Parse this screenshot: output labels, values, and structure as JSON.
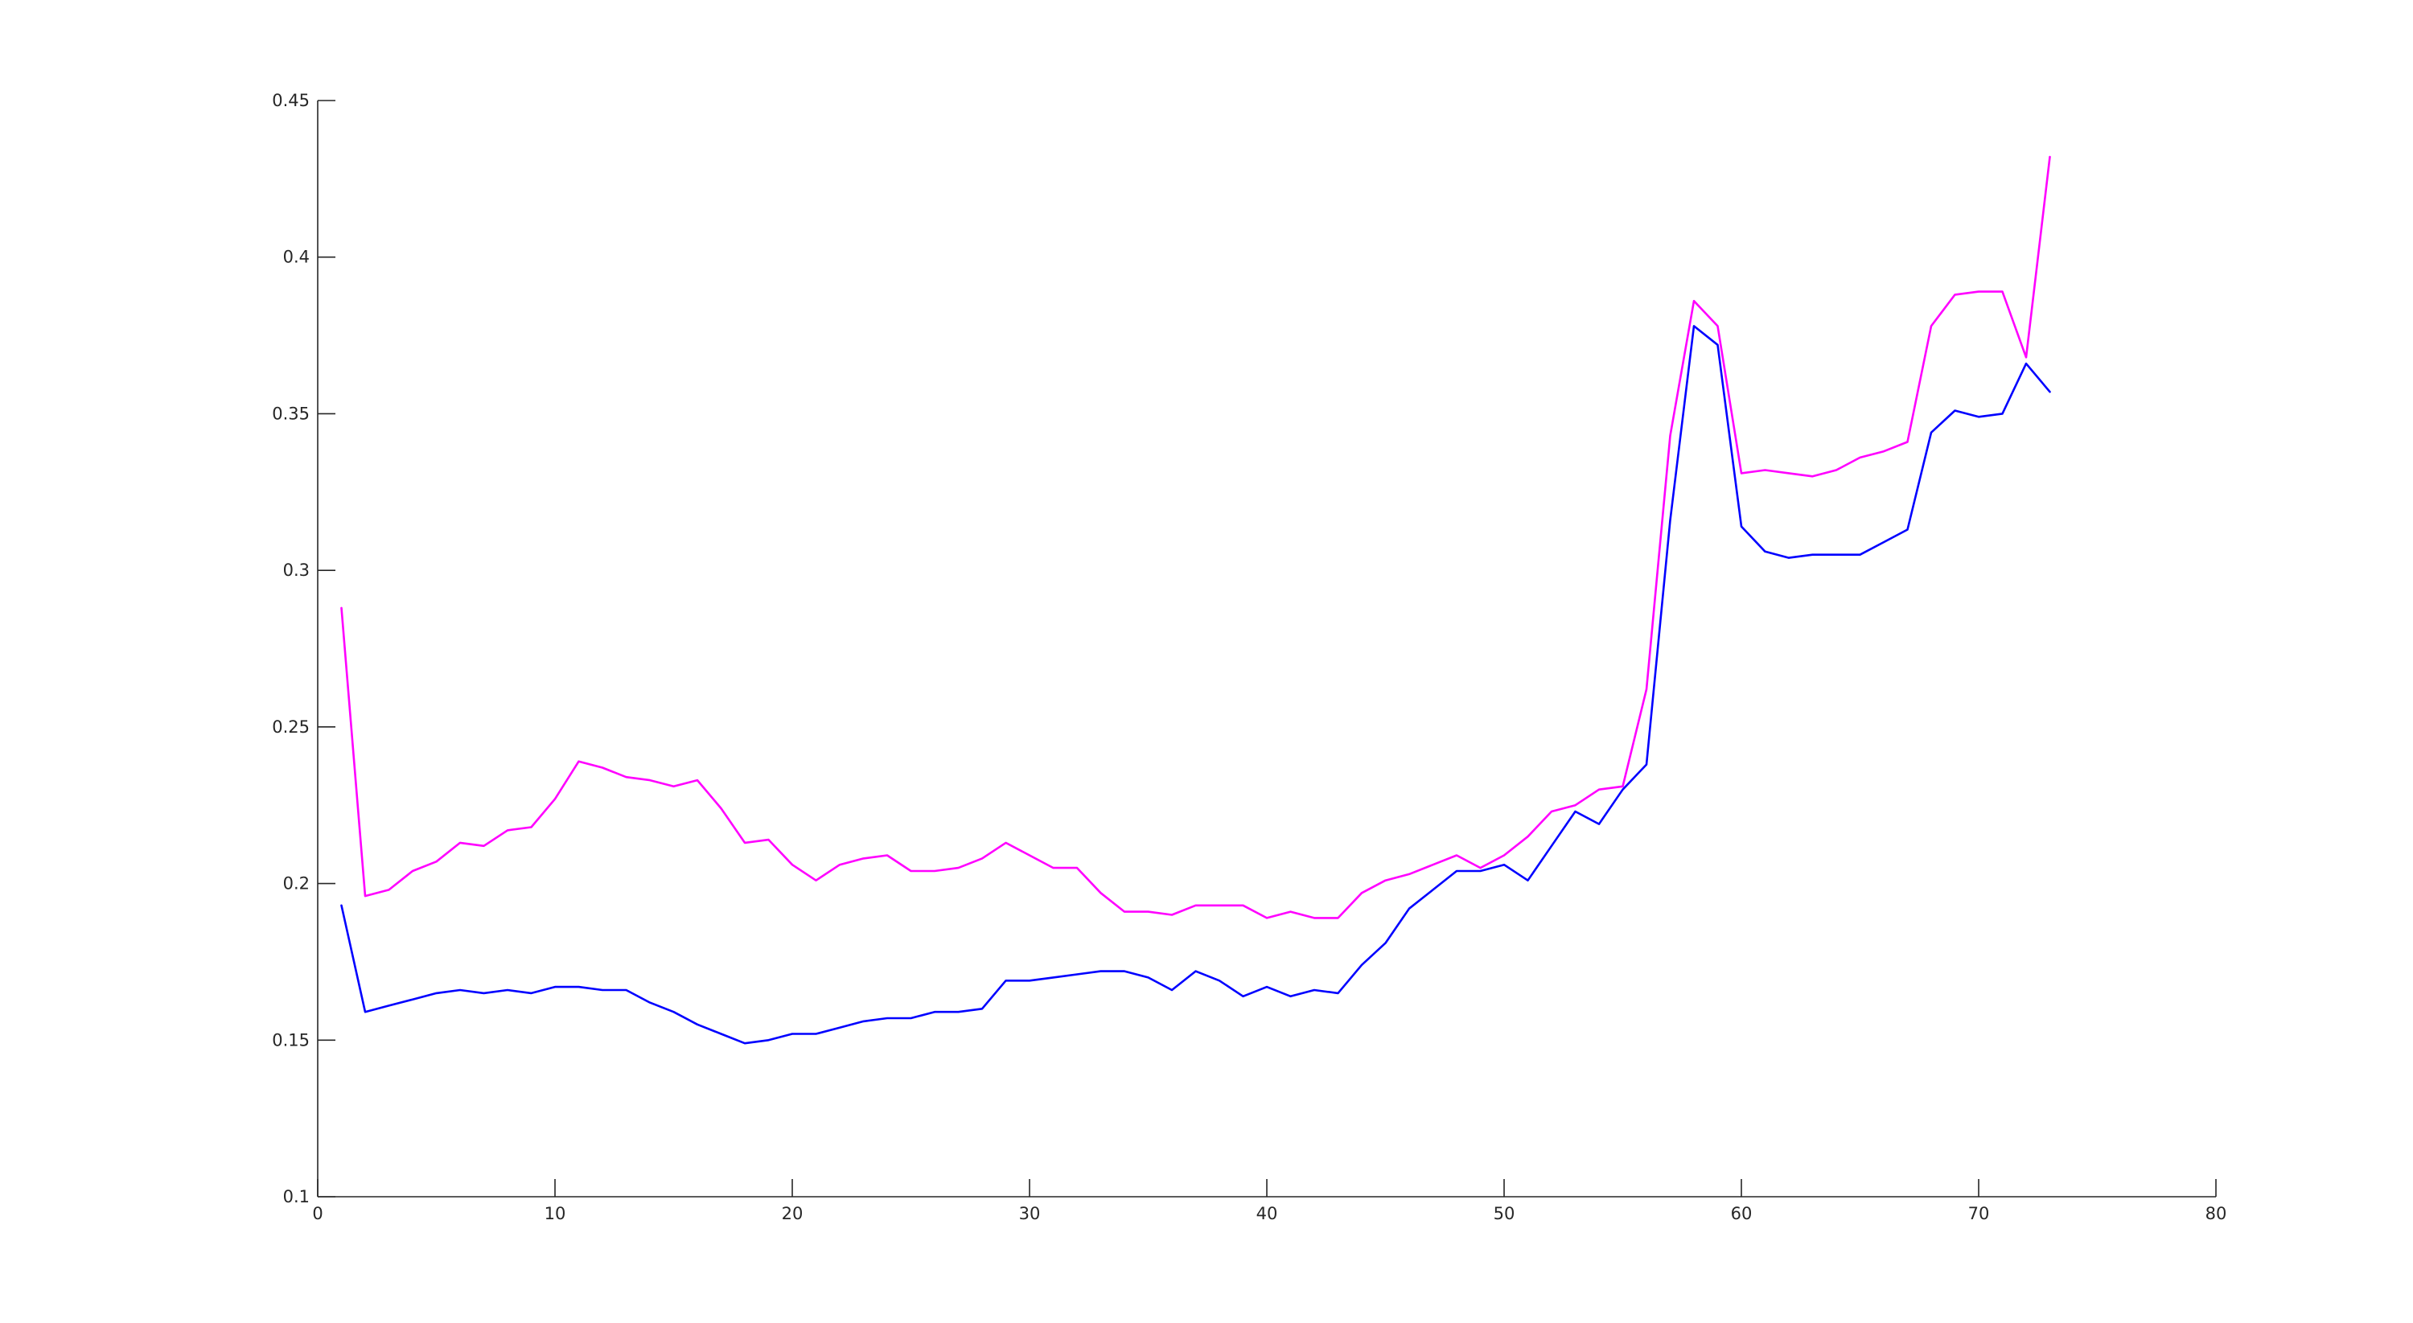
{
  "chart_data": {
    "type": "line",
    "title": "",
    "xlabel": "",
    "ylabel": "",
    "xlim": [
      0,
      80
    ],
    "ylim": [
      0.1,
      0.45
    ],
    "xticks": [
      0,
      10,
      20,
      30,
      40,
      50,
      60,
      70,
      80
    ],
    "yticks": [
      0.1,
      0.15,
      0.2,
      0.25,
      0.3,
      0.35,
      0.4,
      0.45
    ],
    "xtick_labels": [
      "0",
      "10",
      "20",
      "30",
      "40",
      "50",
      "60",
      "70",
      "80"
    ],
    "ytick_labels": [
      "0.1",
      "0.15",
      "0.2",
      "0.25",
      "0.3",
      "0.35",
      "0.4",
      "0.45"
    ],
    "grid": false,
    "x": [
      1,
      2,
      3,
      4,
      5,
      6,
      7,
      8,
      9,
      10,
      11,
      12,
      13,
      14,
      15,
      16,
      17,
      18,
      19,
      20,
      21,
      22,
      23,
      24,
      25,
      26,
      27,
      28,
      29,
      30,
      31,
      32,
      33,
      34,
      35,
      36,
      37,
      38,
      39,
      40,
      41,
      42,
      43,
      44,
      45,
      46,
      47,
      48,
      49,
      50,
      51,
      52,
      53,
      54,
      55,
      56,
      57,
      58,
      59,
      60,
      61,
      62,
      63,
      64,
      65,
      66,
      67,
      68,
      69,
      70,
      71,
      72,
      73
    ],
    "series": [
      {
        "color": "#ff00ff",
        "values": [
          0.288,
          0.196,
          0.198,
          0.204,
          0.207,
          0.213,
          0.212,
          0.217,
          0.218,
          0.227,
          0.239,
          0.237,
          0.234,
          0.233,
          0.231,
          0.233,
          0.224,
          0.213,
          0.214,
          0.206,
          0.201,
          0.206,
          0.208,
          0.209,
          0.204,
          0.204,
          0.205,
          0.208,
          0.213,
          0.209,
          0.205,
          0.205,
          0.197,
          0.191,
          0.191,
          0.19,
          0.193,
          0.193,
          0.193,
          0.189,
          0.191,
          0.189,
          0.189,
          0.197,
          0.201,
          0.203,
          0.206,
          0.209,
          0.205,
          0.209,
          0.215,
          0.223,
          0.225,
          0.23,
          0.231,
          0.262,
          0.343,
          0.386,
          0.378,
          0.331,
          0.332,
          0.331,
          0.33,
          0.332,
          0.336,
          0.338,
          0.341,
          0.378,
          0.388,
          0.389,
          0.389,
          0.368,
          0.432
        ]
      },
      {
        "color": "#0000ff",
        "values": [
          0.193,
          0.159,
          0.161,
          0.163,
          0.165,
          0.166,
          0.165,
          0.166,
          0.165,
          0.167,
          0.167,
          0.166,
          0.166,
          0.162,
          0.159,
          0.155,
          0.152,
          0.149,
          0.15,
          0.152,
          0.152,
          0.154,
          0.156,
          0.157,
          0.157,
          0.159,
          0.159,
          0.16,
          0.169,
          0.169,
          0.17,
          0.171,
          0.172,
          0.172,
          0.17,
          0.166,
          0.172,
          0.169,
          0.164,
          0.167,
          0.164,
          0.166,
          0.165,
          0.174,
          0.181,
          0.192,
          0.198,
          0.204,
          0.204,
          0.206,
          0.201,
          0.212,
          0.223,
          0.219,
          0.23,
          0.238,
          0.316,
          0.378,
          0.372,
          0.314,
          0.306,
          0.304,
          0.305,
          0.305,
          0.305,
          0.309,
          0.313,
          0.344,
          0.351,
          0.349,
          0.35,
          0.366,
          0.357
        ]
      }
    ]
  }
}
